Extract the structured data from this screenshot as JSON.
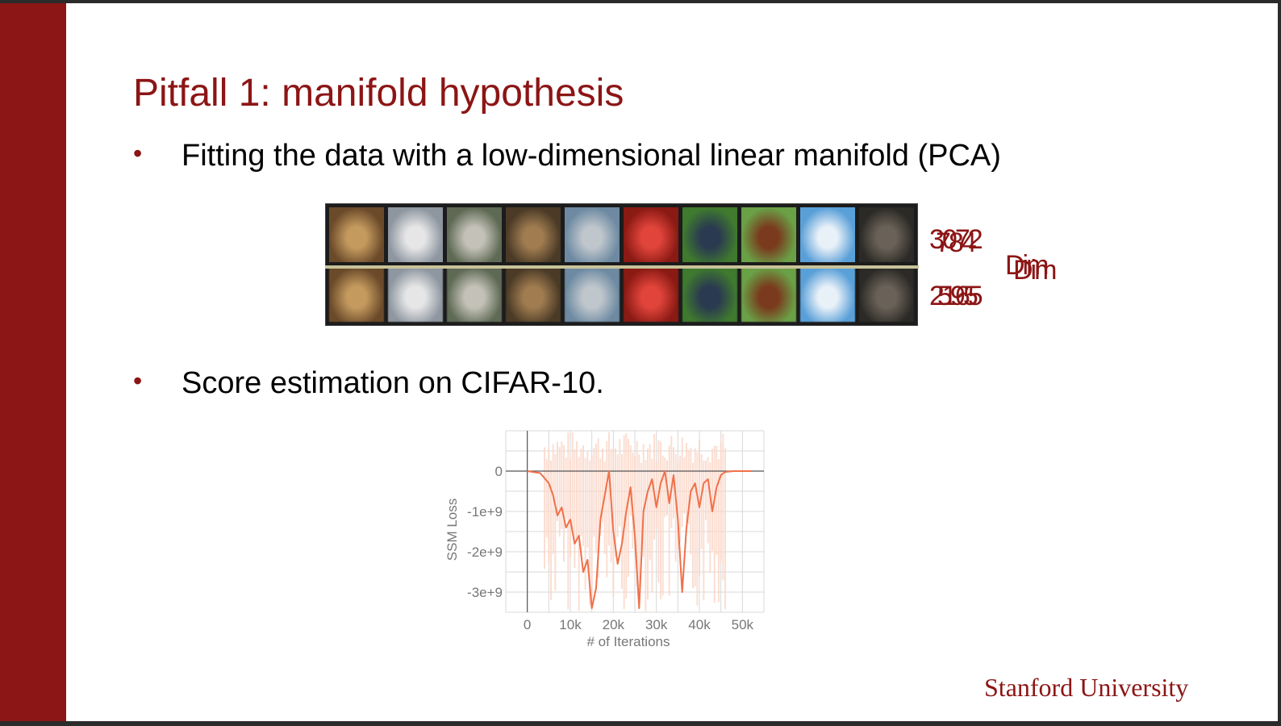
{
  "title": "Pitfall 1: manifold hypothesis",
  "bullets": [
    {
      "marker": "•",
      "text": "Fitting the data with a low-dimensional linear manifold (PCA)"
    },
    {
      "marker": "•",
      "text": "Score estimation on CIFAR-10."
    }
  ],
  "dims": {
    "top_a": "3072",
    "top_b": "784",
    "bottom_a": "2165",
    "bottom_b": "595",
    "label_a": "Dim",
    "label_b": "Dim"
  },
  "image_tiles": [
    {
      "name": "frog-thumbnail",
      "bg": "#6b4a2a",
      "fg": "#c49a5e"
    },
    {
      "name": "truck-thumbnail",
      "bg": "#8e96a0",
      "fg": "#e6e6e6"
    },
    {
      "name": "deer-thumbnail",
      "bg": "#5f6a55",
      "fg": "#c4c2b8"
    },
    {
      "name": "dog-thumbnail",
      "bg": "#4a3a26",
      "fg": "#a07c50"
    },
    {
      "name": "car-thumbnail",
      "bg": "#6d8aa2",
      "fg": "#bfc6cc"
    },
    {
      "name": "red-car-thumbnail",
      "bg": "#8a1a14",
      "fg": "#e0443a"
    },
    {
      "name": "bird-thumbnail",
      "bg": "#3f7a2e",
      "fg": "#2a3a50"
    },
    {
      "name": "horse-thumbnail",
      "bg": "#6aa046",
      "fg": "#7a3a1e"
    },
    {
      "name": "ship-thumbnail",
      "bg": "#5aa0d8",
      "fg": "#e8f0f8"
    },
    {
      "name": "cat-thumbnail",
      "bg": "#2c2a26",
      "fg": "#6a6258"
    }
  ],
  "footer": "Stanford University",
  "colors": {
    "accent": "#8c1515",
    "loss_line": "#f0704a",
    "loss_band": "#fbd7c8"
  },
  "chart_data": {
    "type": "line",
    "xlabel": "# of Iterations",
    "ylabel": "SSM Loss",
    "xlim": [
      -5000,
      55000
    ],
    "ylim": [
      -3500000000.0,
      1000000000.0
    ],
    "x_ticks": [
      0,
      10000,
      20000,
      30000,
      40000,
      50000
    ],
    "x_tick_labels": [
      "0",
      "10k",
      "20k",
      "30k",
      "40k",
      "50k"
    ],
    "y_ticks": [
      0,
      -1000000000.0,
      -2000000000.0,
      -3000000000.0
    ],
    "y_tick_labels": [
      "0",
      "-1e+9",
      "-2e+9",
      "-3e+9"
    ],
    "grid": true,
    "series": [
      {
        "x": [
          0,
          3000,
          5000,
          6000,
          7000,
          8000,
          9000,
          10000,
          11000,
          12000,
          13000,
          14000,
          15000,
          16000,
          17000,
          18000,
          19000,
          20000,
          21000,
          22000,
          23000,
          24000,
          25000,
          26000,
          27000,
          28000,
          29000,
          30000,
          31000,
          32000,
          33000,
          34000,
          35000,
          36000,
          37000,
          38000,
          39000,
          40000,
          41000,
          42000,
          43000,
          44000,
          45000,
          46000,
          48000,
          50000,
          52000
        ],
        "y": [
          0,
          -50000000.0,
          -300000000.0,
          -600000000.0,
          -1100000000.0,
          -900000000.0,
          -1400000000.0,
          -1200000000.0,
          -1800000000.0,
          -1600000000.0,
          -2500000000.0,
          -2200000000.0,
          -3400000000.0,
          -2900000000.0,
          -1200000000.0,
          -600000000.0,
          0,
          -1500000000.0,
          -2300000000.0,
          -1800000000.0,
          -1000000000.0,
          -400000000.0,
          -1600000000.0,
          -3400000000.0,
          -1000000000.0,
          -500000000.0,
          -200000000.0,
          -900000000.0,
          -300000000.0,
          0,
          -800000000.0,
          -100000000.0,
          -1200000000.0,
          -3000000000.0,
          -1400000000.0,
          -500000000.0,
          -300000000.0,
          -900000000.0,
          -300000000.0,
          -200000000.0,
          -1000000000.0,
          -400000000.0,
          -100000000.0,
          -20000000.0,
          0,
          0,
          0
        ]
      }
    ]
  }
}
